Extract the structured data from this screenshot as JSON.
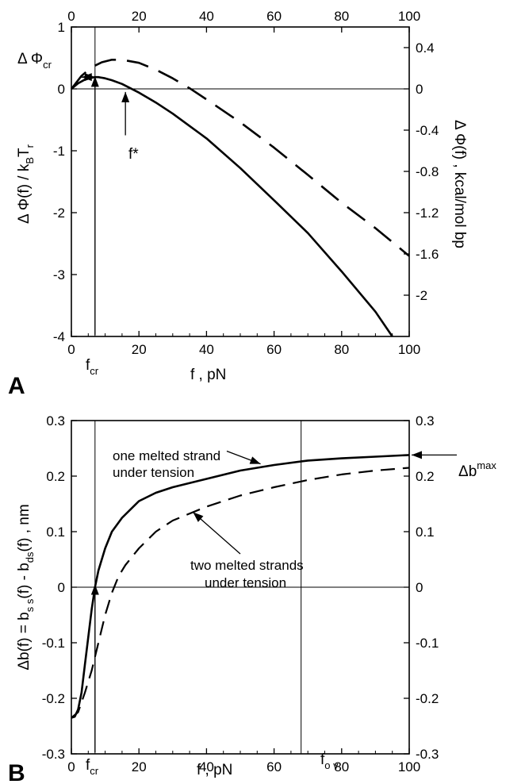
{
  "chart_data": [
    {
      "panel_label": "A",
      "type": "line",
      "xlim": [
        0,
        100
      ],
      "ylim": [
        -4,
        1
      ],
      "y2lim": [
        -2.4,
        0.6
      ],
      "xticks": [
        "0",
        "20",
        "40",
        "60",
        "80",
        "100"
      ],
      "xticks_top": [
        "0",
        "20",
        "40",
        "60",
        "80",
        "100"
      ],
      "yticks": [
        "1",
        "0",
        "-1",
        "-2",
        "-3",
        "-4"
      ],
      "y2ticks": [
        "0.4",
        "0",
        "-0.4",
        "-0.8",
        "-1.2",
        "-1.6",
        "-2"
      ],
      "xlabel": {
        "main": "f ,  pN"
      },
      "ylabel": {
        "pre": "Δ Φ(f) / k",
        "sub1": "B",
        "mid": "T",
        "sub2": "r"
      },
      "y2label": "Δ Φ(f) , kcal/mol bp",
      "annotations": {
        "dphi_cr": {
          "main": "Δ Φ",
          "sub": "cr"
        },
        "fstar": "f*",
        "fcr": {
          "main": "f",
          "sub": "cr"
        }
      },
      "series": [
        {
          "style": "solid",
          "x": [
            0,
            2,
            4,
            6,
            7,
            8,
            10,
            12,
            15,
            20,
            25,
            30,
            35,
            40,
            50,
            60,
            70,
            80,
            90,
            95
          ],
          "y": [
            0,
            0.09,
            0.15,
            0.18,
            0.19,
            0.19,
            0.17,
            0.14,
            0.08,
            -0.06,
            -0.22,
            -0.4,
            -0.6,
            -0.8,
            -1.28,
            -1.8,
            -2.33,
            -2.95,
            -3.6,
            -4.0
          ]
        },
        {
          "style": "dashed",
          "x": [
            0,
            3,
            6,
            9,
            12,
            15,
            20,
            25,
            30,
            35,
            40,
            50,
            60,
            70,
            80,
            90,
            100
          ],
          "y": [
            0,
            0.21,
            0.35,
            0.43,
            0.47,
            0.47,
            0.42,
            0.31,
            0.17,
            0.01,
            -0.17,
            -0.54,
            -0.95,
            -1.39,
            -1.84,
            -2.25,
            -2.7
          ]
        }
      ],
      "reference_lines": {
        "f_cr": 7,
        "f_star": 16
      }
    },
    {
      "panel_label": "B",
      "type": "line",
      "xlim": [
        0,
        100
      ],
      "ylim": [
        -0.3,
        0.3
      ],
      "y2lim": [
        -0.3,
        0.3
      ],
      "xticks": [
        "0",
        "20",
        "40",
        "60",
        "80",
        "100"
      ],
      "yticks": [
        "0.3",
        "0.2",
        "0.1",
        "0",
        "-0.1",
        "-0.2",
        "-0.3"
      ],
      "y2ticks": [
        "0.3",
        "0.2",
        "0.1",
        "0",
        "-0.1",
        "-0.2",
        "-0.3"
      ],
      "xlabel": "f , pN",
      "ylabel": {
        "p1": "Δb(f) = b",
        "s1": "s s",
        "p2": "(f)  -  b",
        "s2": "ds",
        "p3": "(f)  , nm"
      },
      "annotations": {
        "one_melted": [
          "one melted strand",
          "under  tension"
        ],
        "two_melted": [
          "two melted strands",
          "under tension"
        ],
        "dbmax": {
          "main": "Δb",
          "sup": "max"
        },
        "fcr": {
          "main": "f",
          "sub": "cr"
        },
        "fov": {
          "main": "f",
          "sub": "o v"
        }
      },
      "series": [
        {
          "style": "solid",
          "x": [
            0,
            1,
            2,
            3,
            4,
            5,
            6,
            7,
            8,
            10,
            12,
            15,
            20,
            25,
            30,
            40,
            50,
            60,
            70,
            80,
            90,
            100
          ],
          "y": [
            -0.235,
            -0.233,
            -0.22,
            -0.19,
            -0.14,
            -0.09,
            -0.04,
            0.0,
            0.03,
            0.07,
            0.1,
            0.125,
            0.155,
            0.17,
            0.18,
            0.195,
            0.21,
            0.22,
            0.228,
            0.232,
            0.235,
            0.238
          ]
        },
        {
          "style": "dashed",
          "x": [
            0,
            2,
            4,
            6,
            8,
            10,
            12,
            14,
            16,
            20,
            25,
            30,
            40,
            50,
            60,
            70,
            80,
            90,
            100
          ],
          "y": [
            -0.235,
            -0.225,
            -0.19,
            -0.15,
            -0.1,
            -0.05,
            -0.01,
            0.02,
            0.04,
            0.07,
            0.1,
            0.12,
            0.145,
            0.165,
            0.18,
            0.193,
            0.203,
            0.21,
            0.215
          ]
        }
      ],
      "reference_lines": {
        "f_cr": 7,
        "f_ov": 68
      }
    }
  ]
}
